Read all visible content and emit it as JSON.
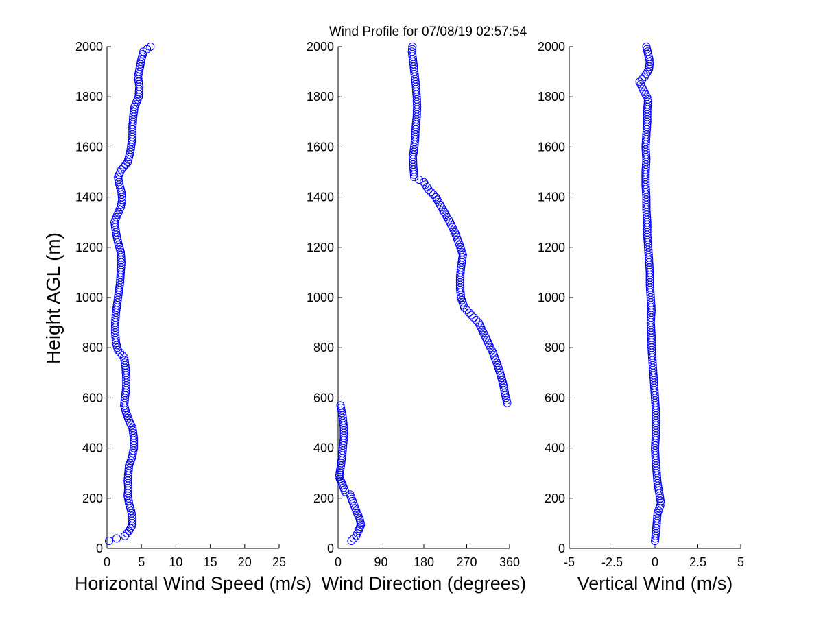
{
  "figure": {
    "title": "Wind Profile for  07/08/19 02:57:54",
    "ylabel": "Height AGL (m)"
  },
  "colors": {
    "marker": "#0000ff",
    "axes": "#000000",
    "background": "#ffffff"
  },
  "chart_data": [
    {
      "type": "scatter",
      "id": "speed",
      "xlabel": "Horizontal Wind Speed (m/s)",
      "ylabel": "Height AGL (m)",
      "xlim": [
        0,
        25
      ],
      "ylim": [
        0,
        2000
      ],
      "xticks": [
        0,
        5,
        10,
        15,
        20,
        25
      ],
      "xtick_labels": [
        "0",
        "5",
        "10",
        "15",
        "20",
        "25"
      ],
      "yticks": [
        0,
        200,
        400,
        600,
        800,
        1000,
        1200,
        1400,
        1600,
        1800,
        2000
      ],
      "ytick_labels": [
        "0",
        "200",
        "400",
        "600",
        "800",
        "1000",
        "1200",
        "1400",
        "1600",
        "1800",
        "2000"
      ],
      "profile": [
        [
          0.3,
          30
        ],
        [
          1.4,
          40
        ],
        [
          2.6,
          50
        ],
        [
          3.2,
          70
        ],
        [
          3.6,
          90
        ],
        [
          3.7,
          120
        ],
        [
          3.5,
          150
        ],
        [
          3.2,
          180
        ],
        [
          3.0,
          210
        ],
        [
          3.1,
          240
        ],
        [
          3.0,
          270
        ],
        [
          3.1,
          300
        ],
        [
          3.2,
          330
        ],
        [
          3.6,
          360
        ],
        [
          3.9,
          400
        ],
        [
          3.9,
          440
        ],
        [
          3.7,
          480
        ],
        [
          3.2,
          510
        ],
        [
          2.8,
          540
        ],
        [
          2.5,
          570
        ],
        [
          2.6,
          600
        ],
        [
          2.8,
          640
        ],
        [
          2.8,
          680
        ],
        [
          2.7,
          720
        ],
        [
          2.5,
          760
        ],
        [
          1.6,
          790
        ],
        [
          1.3,
          820
        ],
        [
          1.2,
          860
        ],
        [
          1.2,
          900
        ],
        [
          1.3,
          940
        ],
        [
          1.5,
          980
        ],
        [
          1.7,
          1020
        ],
        [
          1.9,
          1060
        ],
        [
          2.0,
          1100
        ],
        [
          2.1,
          1140
        ],
        [
          2.0,
          1180
        ],
        [
          1.6,
          1220
        ],
        [
          1.3,
          1260
        ],
        [
          1.1,
          1300
        ],
        [
          1.5,
          1330
        ],
        [
          2.0,
          1360
        ],
        [
          2.2,
          1390
        ],
        [
          2.1,
          1420
        ],
        [
          1.8,
          1450
        ],
        [
          1.6,
          1480
        ],
        [
          2.1,
          1510
        ],
        [
          3.0,
          1540
        ],
        [
          3.3,
          1570
        ],
        [
          3.5,
          1600
        ],
        [
          3.7,
          1640
        ],
        [
          3.7,
          1680
        ],
        [
          3.8,
          1720
        ],
        [
          4.0,
          1760
        ],
        [
          4.6,
          1800
        ],
        [
          4.7,
          1840
        ],
        [
          4.5,
          1880
        ],
        [
          4.8,
          1920
        ],
        [
          5.0,
          1950
        ],
        [
          5.3,
          1980
        ],
        [
          6.3,
          2000
        ]
      ]
    },
    {
      "type": "scatter",
      "id": "direction",
      "xlabel": "Wind Direction (degrees)",
      "ylabel": "Height AGL (m)",
      "xlim": [
        0,
        360
      ],
      "ylim": [
        0,
        2000
      ],
      "xticks": [
        0,
        90,
        180,
        270,
        360
      ],
      "xtick_labels": [
        "0",
        "90",
        "180",
        "270",
        "360"
      ],
      "yticks": [
        0,
        200,
        400,
        600,
        800,
        1000,
        1200,
        1400,
        1600,
        1800,
        2000
      ],
      "ytick_labels": [
        "0",
        "200",
        "400",
        "600",
        "800",
        "1000",
        "1200",
        "1400",
        "1600",
        "1800",
        "2000"
      ],
      "profile": [
        [
          28,
          30
        ],
        [
          38,
          50
        ],
        [
          43,
          70
        ],
        [
          48,
          95
        ],
        [
          45,
          120
        ],
        [
          38,
          150
        ],
        [
          32,
          180
        ],
        [
          25,
          215
        ],
        [
          15,
          225
        ],
        [
          8,
          260
        ],
        [
          2,
          285
        ],
        [
          5,
          320
        ],
        [
          8,
          360
        ],
        [
          10,
          400
        ],
        [
          12,
          440
        ],
        [
          12,
          480
        ],
        [
          10,
          520
        ],
        [
          5,
          570
        ],
        [
          355,
          580
        ],
        [
          350,
          620
        ],
        [
          346,
          660
        ],
        [
          340,
          700
        ],
        [
          333,
          740
        ],
        [
          325,
          780
        ],
        [
          315,
          820
        ],
        [
          305,
          860
        ],
        [
          295,
          900
        ],
        [
          280,
          930
        ],
        [
          265,
          960
        ],
        [
          258,
          1000
        ],
        [
          256,
          1040
        ],
        [
          256,
          1080
        ],
        [
          258,
          1120
        ],
        [
          262,
          1170
        ],
        [
          255,
          1210
        ],
        [
          245,
          1260
        ],
        [
          235,
          1300
        ],
        [
          220,
          1350
        ],
        [
          205,
          1400
        ],
        [
          190,
          1430
        ],
        [
          180,
          1460
        ],
        [
          160,
          1480
        ],
        [
          158,
          1520
        ],
        [
          157,
          1560
        ],
        [
          160,
          1600
        ],
        [
          162,
          1640
        ],
        [
          163,
          1680
        ],
        [
          165,
          1720
        ],
        [
          166,
          1760
        ],
        [
          165,
          1800
        ],
        [
          163,
          1850
        ],
        [
          160,
          1900
        ],
        [
          157,
          1950
        ],
        [
          155,
          1980
        ],
        [
          156,
          2000
        ]
      ]
    },
    {
      "type": "scatter",
      "id": "vertical",
      "xlabel": "Vertical Wind (m/s)",
      "ylabel": "Height AGL (m)",
      "xlim": [
        -5,
        5
      ],
      "ylim": [
        0,
        2000
      ],
      "xticks": [
        -5,
        -2.5,
        0,
        2.5,
        5
      ],
      "xtick_labels": [
        "-5",
        "-2.5",
        "0",
        "2.5",
        "5"
      ],
      "yticks": [
        0,
        200,
        400,
        600,
        800,
        1000,
        1200,
        1400,
        1600,
        1800,
        2000
      ],
      "ytick_labels": [
        "0",
        "200",
        "400",
        "600",
        "800",
        "1000",
        "1200",
        "1400",
        "1600",
        "1800",
        "2000"
      ],
      "profile": [
        [
          0.0,
          30
        ],
        [
          0.05,
          60
        ],
        [
          0.1,
          100
        ],
        [
          0.15,
          140
        ],
        [
          0.35,
          180
        ],
        [
          0.25,
          220
        ],
        [
          0.15,
          260
        ],
        [
          0.1,
          300
        ],
        [
          0.05,
          340
        ],
        [
          0.0,
          400
        ],
        [
          0.05,
          450
        ],
        [
          0.05,
          500
        ],
        [
          0.05,
          550
        ],
        [
          0.0,
          600
        ],
        [
          -0.05,
          650
        ],
        [
          -0.1,
          700
        ],
        [
          -0.15,
          750
        ],
        [
          -0.2,
          800
        ],
        [
          -0.2,
          850
        ],
        [
          -0.25,
          900
        ],
        [
          -0.2,
          950
        ],
        [
          -0.25,
          1000
        ],
        [
          -0.3,
          1050
        ],
        [
          -0.3,
          1100
        ],
        [
          -0.35,
          1150
        ],
        [
          -0.4,
          1200
        ],
        [
          -0.45,
          1250
        ],
        [
          -0.45,
          1300
        ],
        [
          -0.5,
          1350
        ],
        [
          -0.5,
          1400
        ],
        [
          -0.55,
          1450
        ],
        [
          -0.55,
          1500
        ],
        [
          -0.5,
          1550
        ],
        [
          -0.55,
          1600
        ],
        [
          -0.5,
          1650
        ],
        [
          -0.45,
          1700
        ],
        [
          -0.45,
          1750
        ],
        [
          -0.4,
          1790
        ],
        [
          -0.7,
          1830
        ],
        [
          -0.9,
          1860
        ],
        [
          -0.6,
          1880
        ],
        [
          -0.35,
          1910
        ],
        [
          -0.3,
          1940
        ],
        [
          -0.4,
          1970
        ],
        [
          -0.5,
          2000
        ]
      ]
    }
  ]
}
